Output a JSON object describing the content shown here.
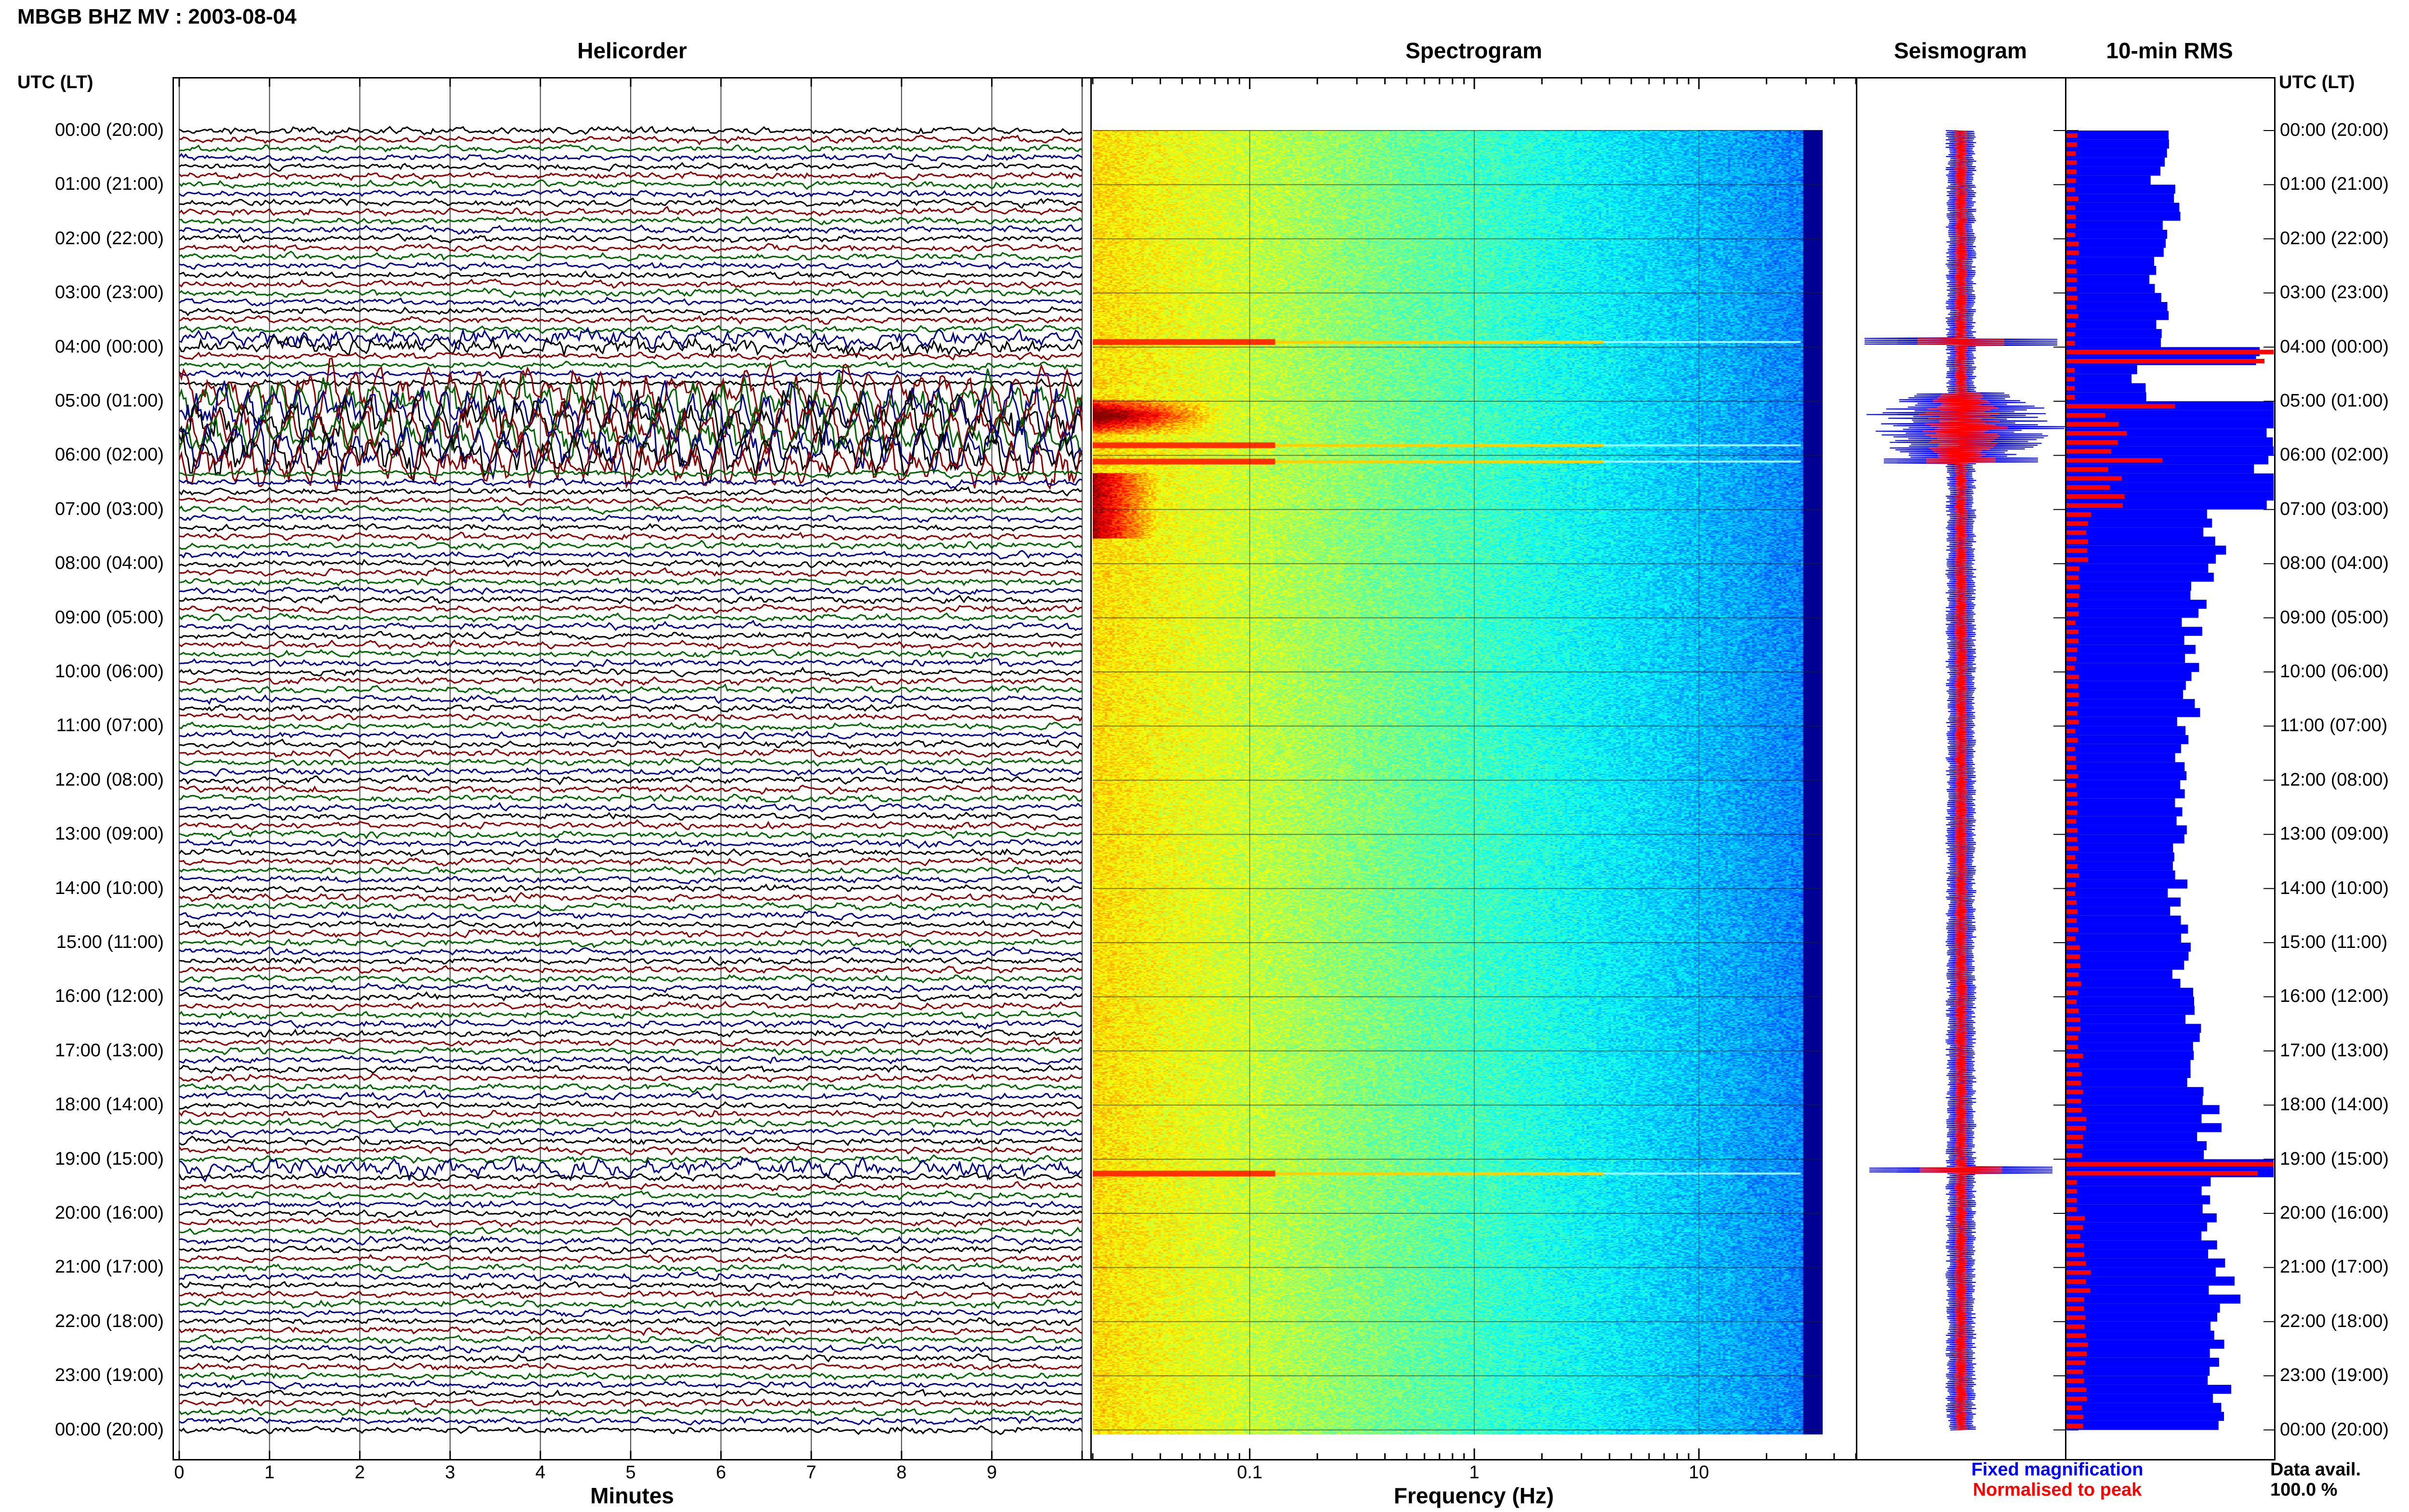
{
  "title": "MBGB BHZ MV : 2003-08-04",
  "panels": {
    "helicorder": "Helicorder",
    "spectrogram": "Spectrogram",
    "seismogram": "Seismogram",
    "rms": "10-min RMS"
  },
  "axis_header_left": "UTC (LT)",
  "axis_header_right": "UTC (LT)",
  "time_labels": [
    "00:00 (20:00)",
    "01:00 (21:00)",
    "02:00 (22:00)",
    "03:00 (23:00)",
    "04:00 (00:00)",
    "05:00 (01:00)",
    "06:00 (02:00)",
    "07:00 (03:00)",
    "08:00 (04:00)",
    "09:00 (05:00)",
    "10:00 (06:00)",
    "11:00 (07:00)",
    "12:00 (08:00)",
    "13:00 (09:00)",
    "14:00 (10:00)",
    "15:00 (11:00)",
    "16:00 (12:00)",
    "17:00 (13:00)",
    "18:00 (14:00)",
    "19:00 (15:00)",
    "20:00 (16:00)",
    "21:00 (17:00)",
    "22:00 (18:00)",
    "23:00 (19:00)",
    "00:00 (20:00)"
  ],
  "legend": {
    "fixed": "Fixed magnification",
    "normalised": "Normalised to peak",
    "data_avail_label": "Data avail.",
    "data_avail_value": "100.0 %"
  },
  "colors": {
    "trace_cycle": [
      "#000000",
      "#8b0000",
      "#006400",
      "#00008b"
    ],
    "fixed": "#0000ff",
    "normalised": "#ff0000"
  },
  "chart_data": [
    {
      "type": "line",
      "name": "helicorder",
      "xlabel": "Minutes",
      "x_ticks": [
        "0",
        "1",
        "2",
        "3",
        "4",
        "5",
        "6",
        "7",
        "8",
        "9"
      ],
      "xlim": [
        0,
        10
      ],
      "rows_per_hour": 6,
      "hours": 24,
      "events_utc_hours": [
        3.9,
        5.0,
        5.2,
        5.5,
        5.8,
        6.1,
        19.2
      ]
    },
    {
      "type": "heatmap",
      "name": "spectrogram",
      "xlabel": "Frequency (Hz)",
      "x_scale": "log",
      "x_ticks": [
        "0.1",
        "1",
        "10"
      ],
      "xlim": [
        0.02,
        50
      ],
      "rows": 144,
      "high_energy_utc_hours": [
        3.9,
        5.2,
        5.5,
        5.8,
        6.1,
        7.0,
        19.2
      ]
    },
    {
      "type": "line",
      "name": "seismogram",
      "series": [
        "Fixed magnification",
        "Normalised to peak"
      ]
    },
    {
      "type": "bar",
      "name": "rms",
      "series": [
        "Fixed magnification",
        "Normalised to peak"
      ],
      "bins": 144,
      "fixed_profile_hourly": [
        0.46,
        0.52,
        0.45,
        0.48,
        0.98,
        1.0,
        1.0,
        0.72,
        0.66,
        0.62,
        0.6,
        0.58,
        0.56,
        0.55,
        0.55,
        0.58,
        0.62,
        0.66,
        0.7,
        0.95,
        0.74,
        0.78,
        0.75,
        0.74
      ],
      "normalised_profile_hourly": [
        0.05,
        0.05,
        0.05,
        0.05,
        0.95,
        0.55,
        0.55,
        0.1,
        0.06,
        0.05,
        0.05,
        0.05,
        0.05,
        0.05,
        0.05,
        0.06,
        0.06,
        0.07,
        0.08,
        0.98,
        0.08,
        0.1,
        0.09,
        0.09
      ]
    }
  ]
}
